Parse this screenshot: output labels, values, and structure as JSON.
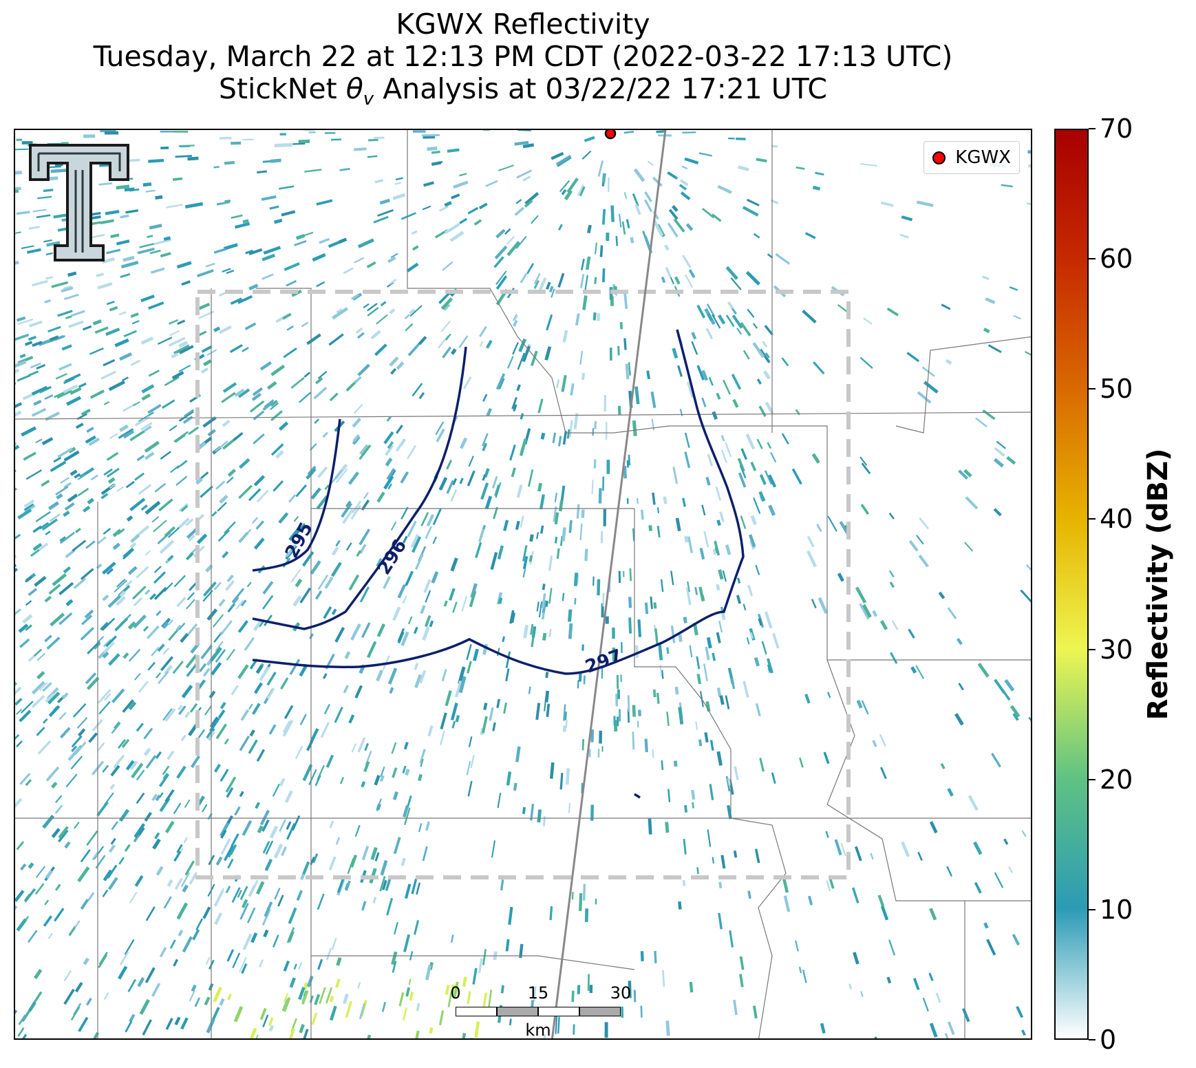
{
  "title": {
    "line1": "KGWX Reflectivity",
    "line2": "Tuesday, March 22 at 12:13 PM CDT (2022-03-22 17:13 UTC)",
    "line3_prefix": "StickNet ",
    "line3_theta": "θ",
    "line3_sub": "v",
    "line3_suffix": " Analysis at 03/22/22 17:21 UTC"
  },
  "legend": {
    "label": "KGWX",
    "marker_color": "#ff0000"
  },
  "logo": {
    "icon": "texas-tech-double-t-logo"
  },
  "contours": [
    {
      "label": "295"
    },
    {
      "label": "296"
    },
    {
      "label": "297"
    }
  ],
  "contour_color": "#0d1f6b",
  "scalebar": {
    "ticks": [
      "0",
      "15",
      "30"
    ],
    "unit": "km"
  },
  "colorbar": {
    "title": "Reflectivity (dBZ)",
    "ticks": [
      "0",
      "10",
      "20",
      "30",
      "40",
      "50",
      "60",
      "70"
    ],
    "colors": [
      "#ffffff",
      "#2b9bb6",
      "#5fc283",
      "#eef552",
      "#e6b400",
      "#d96a00",
      "#c62a00",
      "#a80000"
    ]
  }
}
